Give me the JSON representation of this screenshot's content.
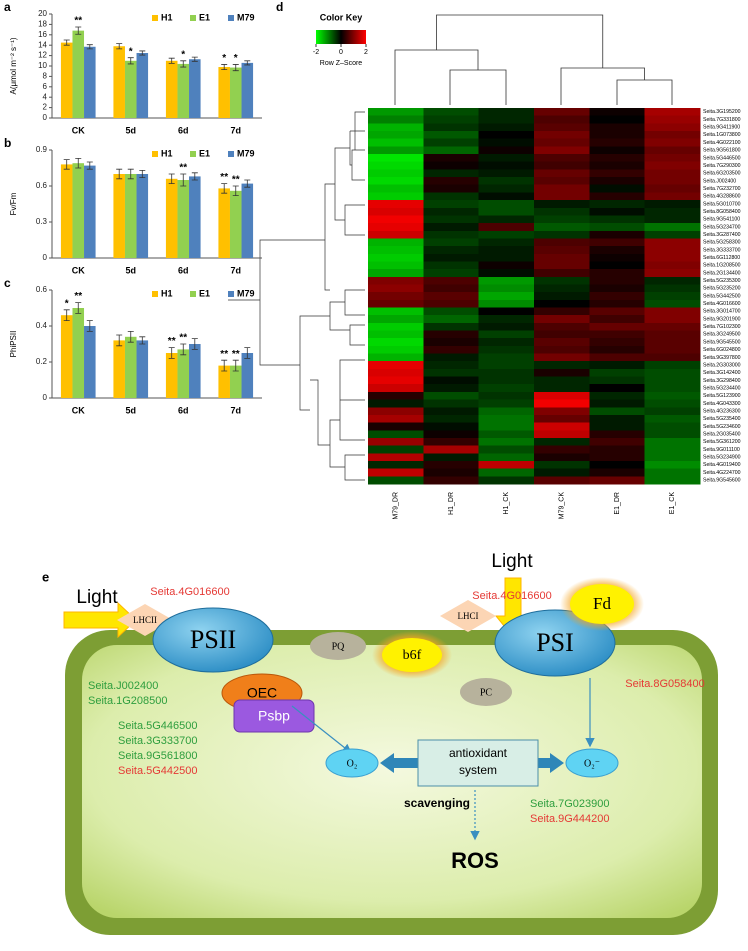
{
  "chart_data": [
    {
      "type": "bar",
      "panel": "a",
      "ylabel": "A(μmol m⁻² s⁻¹)",
      "categories": [
        "CK",
        "5d",
        "6d",
        "7d"
      ],
      "series": [
        {
          "name": "H1",
          "color": "#ffc000",
          "values": [
            14.5,
            13.8,
            11.0,
            9.8
          ],
          "errors": [
            0.5,
            0.5,
            0.5,
            0.5
          ],
          "stars": [
            null,
            null,
            null,
            "*"
          ]
        },
        {
          "name": "E1",
          "color": "#92d050",
          "values": [
            16.8,
            11.0,
            10.4,
            9.7
          ],
          "errors": [
            0.7,
            0.6,
            0.6,
            0.6
          ],
          "stars": [
            "**",
            "*",
            "*",
            "*"
          ]
        },
        {
          "name": "M79",
          "color": "#4f81bd",
          "values": [
            13.7,
            12.5,
            11.3,
            10.6
          ],
          "errors": [
            0.4,
            0.4,
            0.4,
            0.4
          ]
        }
      ],
      "ylim": [
        0,
        20
      ],
      "yticks": [
        0,
        2,
        4,
        6,
        8,
        10,
        12,
        14,
        16,
        18,
        20
      ]
    },
    {
      "type": "bar",
      "panel": "b",
      "ylabel": "Fv/Fm",
      "categories": [
        "CK",
        "5d",
        "6d",
        "7d"
      ],
      "series": [
        {
          "name": "H1",
          "color": "#ffc000",
          "values": [
            0.78,
            0.7,
            0.66,
            0.58
          ],
          "errors": [
            0.04,
            0.04,
            0.04,
            0.04
          ],
          "stars": [
            null,
            null,
            null,
            "**"
          ]
        },
        {
          "name": "E1",
          "color": "#92d050",
          "values": [
            0.79,
            0.7,
            0.65,
            0.56
          ],
          "errors": [
            0.04,
            0.04,
            0.05,
            0.04
          ],
          "stars": [
            null,
            null,
            "**",
            "**"
          ]
        },
        {
          "name": "M79",
          "color": "#4f81bd",
          "values": [
            0.77,
            0.7,
            0.68,
            0.62
          ],
          "errors": [
            0.03,
            0.03,
            0.03,
            0.03
          ]
        }
      ],
      "ylim": [
        0,
        0.9
      ],
      "yticks": [
        0,
        0.3,
        0.6,
        0.9
      ]
    },
    {
      "type": "bar",
      "panel": "c",
      "ylabel": "PhiPSII",
      "categories": [
        "CK",
        "5d",
        "6d",
        "7d"
      ],
      "series": [
        {
          "name": "H1",
          "color": "#ffc000",
          "values": [
            0.46,
            0.32,
            0.25,
            0.18
          ],
          "errors": [
            0.03,
            0.03,
            0.03,
            0.03
          ],
          "stars": [
            "*",
            null,
            "**",
            "**"
          ]
        },
        {
          "name": "E1",
          "color": "#92d050",
          "values": [
            0.5,
            0.34,
            0.27,
            0.18
          ],
          "errors": [
            0.03,
            0.03,
            0.03,
            0.03
          ],
          "stars": [
            "**",
            null,
            "**",
            "**"
          ]
        },
        {
          "name": "M79",
          "color": "#4f81bd",
          "values": [
            0.4,
            0.32,
            0.3,
            0.25
          ],
          "errors": [
            0.03,
            0.02,
            0.03,
            0.03
          ]
        }
      ],
      "ylim": [
        0,
        0.6
      ],
      "yticks": [
        0,
        0.2,
        0.4,
        0.6
      ]
    },
    {
      "type": "heatmap",
      "panel": "d",
      "key_title": "Color Key",
      "key_label": "Row Z–Score",
      "zlim": [
        -2,
        2
      ],
      "zticks": [
        -2,
        0,
        2
      ],
      "columns": [
        "M79_DR",
        "H1_DR",
        "H1_CK",
        "M79_CK",
        "E1_DR",
        "E1_CK"
      ],
      "rows": [
        "Seita.3G195200",
        "Seita.7G331800",
        "Seita.9G411900",
        "Seita.1G073800",
        "Seita.4G022100",
        "Seita.9G561800",
        "Seita.5G446500",
        "Seita.7G290300",
        "Seita.6G203500",
        "Seita.J002400",
        "Seita.7G232700",
        "Seita.4G288600",
        "Seita.5G010700",
        "Seita.8G058400",
        "Seita.9G541100",
        "Seita.5G234700",
        "Seita.3G287400",
        "Seita.5G258300",
        "Seita.3G333700",
        "Seita.6G112800",
        "Seita.1G208500",
        "Seita.2G134400",
        "Seita.5G235300",
        "Seita.5G235200",
        "Seita.5G442500",
        "Seita.4G016600",
        "Seita.3G014700",
        "Seita.9G201900",
        "Seita.7G102300",
        "Seita.3G249500",
        "Seita.9G545500",
        "Seita.6G024800",
        "Seita.9G397800",
        "Seita.2G303000",
        "Seita.3G142400",
        "Seita.3G298400",
        "Seita.5G234400",
        "Seita.5G123900",
        "Seita.4G043300",
        "Seita.4G236300",
        "Seita.5G235400",
        "Seita.5G234600",
        "Seita.2G035400",
        "Seita.5G361200",
        "Seita.9G011100",
        "Seita.5G234900",
        "Seita.4G019400",
        "Seita.4G224700",
        "Seita.9G545600"
      ],
      "values": [
        [
          -1.2,
          -0.6,
          -0.3,
          0.8,
          0.1,
          1.3
        ],
        [
          -1.0,
          -0.5,
          -0.3,
          0.6,
          0.0,
          1.2
        ],
        [
          -1.4,
          -0.4,
          -0.2,
          0.7,
          0.2,
          1.1
        ],
        [
          -1.3,
          -0.7,
          0.0,
          0.9,
          0.2,
          0.9
        ],
        [
          -1.5,
          -0.5,
          -0.1,
          0.8,
          0.3,
          1.0
        ],
        [
          -1.2,
          -0.8,
          0.1,
          1.0,
          0.1,
          0.8
        ],
        [
          -1.8,
          0.2,
          -0.2,
          0.6,
          0.3,
          0.9
        ],
        [
          -1.7,
          0.1,
          -0.1,
          0.5,
          0.2,
          1.0
        ],
        [
          -1.6,
          -0.3,
          -0.2,
          0.8,
          0.4,
          0.9
        ],
        [
          -1.7,
          0.3,
          -0.4,
          0.7,
          0.2,
          0.9
        ],
        [
          -1.5,
          0.2,
          -0.3,
          0.9,
          -0.1,
          0.8
        ],
        [
          -1.6,
          -0.4,
          -0.1,
          0.9,
          0.3,
          0.9
        ],
        [
          1.8,
          -0.5,
          -0.6,
          -0.2,
          -0.3,
          -0.2
        ],
        [
          1.7,
          -0.3,
          -0.6,
          -0.4,
          -0.1,
          -0.3
        ],
        [
          1.9,
          -0.4,
          -0.3,
          -0.5,
          -0.4,
          -0.3
        ],
        [
          1.8,
          -0.2,
          0.6,
          -0.7,
          -0.6,
          -0.9
        ],
        [
          1.6,
          -0.4,
          -0.5,
          -0.4,
          0.2,
          -0.5
        ],
        [
          -1.4,
          -0.5,
          -0.3,
          0.6,
          0.5,
          1.1
        ],
        [
          -1.5,
          -0.3,
          -0.2,
          0.7,
          0.2,
          1.1
        ],
        [
          -1.6,
          -0.2,
          -0.2,
          0.8,
          0.1,
          1.1
        ],
        [
          -1.5,
          -0.4,
          0.1,
          0.8,
          0.0,
          1.0
        ],
        [
          -1.3,
          -0.5,
          -0.1,
          0.5,
          0.3,
          1.1
        ],
        [
          1.0,
          0.6,
          -1.2,
          -0.4,
          0.3,
          -0.3
        ],
        [
          1.1,
          0.5,
          -1.1,
          -0.3,
          0.2,
          -0.4
        ],
        [
          0.9,
          0.7,
          -1.3,
          -0.2,
          0.4,
          -0.5
        ],
        [
          0.8,
          0.6,
          -1.1,
          0.0,
          0.3,
          -0.6
        ],
        [
          -1.5,
          -0.6,
          0.0,
          0.4,
          0.7,
          1.0
        ],
        [
          -1.3,
          -0.8,
          -0.3,
          0.9,
          0.5,
          1.0
        ],
        [
          -1.6,
          -0.4,
          -0.2,
          0.6,
          0.8,
          0.8
        ],
        [
          -1.5,
          0.3,
          -0.5,
          0.5,
          0.5,
          0.7
        ],
        [
          -1.7,
          0.2,
          -0.3,
          0.7,
          0.4,
          0.7
        ],
        [
          -1.6,
          0.4,
          -0.4,
          0.6,
          0.3,
          0.7
        ],
        [
          -1.4,
          -0.2,
          -0.5,
          0.9,
          0.6,
          0.6
        ],
        [
          1.8,
          -0.3,
          -0.5,
          -0.3,
          -0.2,
          -0.5
        ],
        [
          1.7,
          -0.4,
          -0.4,
          0.2,
          -0.5,
          -0.6
        ],
        [
          1.8,
          -0.1,
          -0.4,
          -0.3,
          -0.4,
          -0.6
        ],
        [
          1.6,
          -0.2,
          -0.5,
          -0.3,
          0.0,
          -0.6
        ],
        [
          0.3,
          -0.6,
          -0.4,
          1.7,
          -0.3,
          -0.7
        ],
        [
          -0.2,
          -0.4,
          -0.5,
          1.9,
          -0.2,
          -0.6
        ],
        [
          1.1,
          -0.2,
          -0.8,
          1.0,
          -0.6,
          -0.5
        ],
        [
          1.3,
          -0.3,
          -0.9,
          0.8,
          -0.2,
          -0.7
        ],
        [
          0.2,
          -0.1,
          -0.9,
          1.6,
          -0.2,
          -0.6
        ],
        [
          -0.6,
          0.1,
          -0.7,
          1.5,
          0.3,
          -0.6
        ],
        [
          1.2,
          0.4,
          -0.9,
          -0.3,
          0.5,
          -0.9
        ],
        [
          -0.5,
          1.3,
          -0.6,
          0.4,
          0.3,
          -0.9
        ],
        [
          1.4,
          -0.2,
          -0.8,
          0.2,
          0.3,
          -0.9
        ],
        [
          -0.3,
          0.3,
          1.5,
          -0.4,
          0.0,
          -1.1
        ],
        [
          1.5,
          0.2,
          -0.8,
          -0.2,
          0.2,
          -0.9
        ],
        [
          -0.6,
          0.4,
          -0.4,
          0.7,
          0.8,
          -0.9
        ]
      ]
    }
  ],
  "diagram": {
    "label": "e",
    "light": [
      "Light",
      "Light"
    ],
    "nodes": {
      "lhcii": "LHCII",
      "psii": "PSII",
      "pq": "PQ",
      "b6f": "b6f",
      "pc": "PC",
      "psi": "PSI",
      "fd": "Fd",
      "lhci": "LHCI",
      "oec": "OEC",
      "psbp": "Psbp",
      "o2": "O₂",
      "o2minus": "O₂⁻",
      "antioxidant_system": [
        "antioxidant",
        "system"
      ],
      "scavenging": "scavenging",
      "ros": "ROS"
    },
    "genes": [
      {
        "text": "Seita.4G016600",
        "color": "#e53935"
      },
      {
        "text": "Seita.4G016600",
        "color": "#e53935"
      },
      {
        "text": "Seita.8G058400",
        "color": "#e53935"
      },
      {
        "text": "Seita.J002400",
        "color": "#2e9e3e"
      },
      {
        "text": "Seita.1G208500",
        "color": "#2e9e3e"
      },
      {
        "text": "Seita.5G446500",
        "color": "#2e9e3e"
      },
      {
        "text": "Seita.3G333700",
        "color": "#2e9e3e"
      },
      {
        "text": "Seita.9G561800",
        "color": "#2e9e3e"
      },
      {
        "text": "Seita.5G442500",
        "color": "#e53935"
      },
      {
        "text": "Seita.7G023900",
        "color": "#2e9e3e"
      },
      {
        "text": "Seita.9G444200",
        "color": "#e53935"
      }
    ]
  }
}
